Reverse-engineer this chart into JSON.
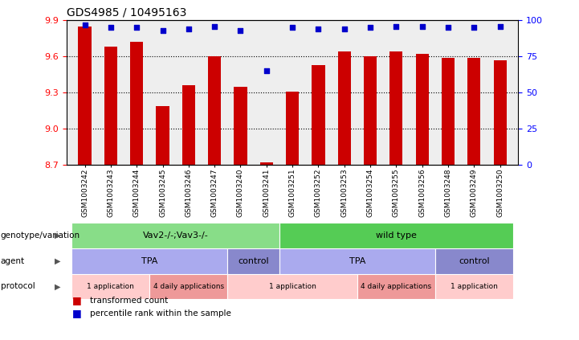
{
  "title": "GDS4985 / 10495163",
  "samples": [
    "GSM1003242",
    "GSM1003243",
    "GSM1003244",
    "GSM1003245",
    "GSM1003246",
    "GSM1003247",
    "GSM1003240",
    "GSM1003241",
    "GSM1003251",
    "GSM1003252",
    "GSM1003253",
    "GSM1003254",
    "GSM1003255",
    "GSM1003256",
    "GSM1003248",
    "GSM1003249",
    "GSM1003250"
  ],
  "red_values": [
    9.85,
    9.68,
    9.72,
    9.19,
    9.36,
    9.6,
    9.35,
    8.72,
    9.31,
    9.53,
    9.64,
    9.6,
    9.64,
    9.62,
    9.59,
    9.59,
    9.57
  ],
  "blue_values": [
    97,
    95,
    95,
    93,
    94,
    96,
    93,
    65,
    95,
    94,
    94,
    95,
    96,
    96,
    95,
    95,
    96
  ],
  "ylim_left": [
    8.7,
    9.9
  ],
  "ylim_right": [
    0,
    100
  ],
  "yticks_left": [
    8.7,
    9.0,
    9.3,
    9.6,
    9.9
  ],
  "yticks_right": [
    0,
    25,
    50,
    75,
    100
  ],
  "bar_color": "#cc0000",
  "dot_color": "#0000cc",
  "bg_color": "#eeeeee",
  "genotype_groups": [
    {
      "label": "Vav2-/-;Vav3-/-",
      "start": 0,
      "end": 8,
      "color": "#88dd88"
    },
    {
      "label": "wild type",
      "start": 8,
      "end": 17,
      "color": "#55cc55"
    }
  ],
  "agent_groups": [
    {
      "label": "TPA",
      "start": 0,
      "end": 6,
      "color": "#aaaaee"
    },
    {
      "label": "control",
      "start": 6,
      "end": 8,
      "color": "#8888cc"
    },
    {
      "label": "TPA",
      "start": 8,
      "end": 14,
      "color": "#aaaaee"
    },
    {
      "label": "control",
      "start": 14,
      "end": 17,
      "color": "#8888cc"
    }
  ],
  "protocol_groups": [
    {
      "label": "1 application",
      "start": 0,
      "end": 3,
      "color": "#ffcccc"
    },
    {
      "label": "4 daily applications",
      "start": 3,
      "end": 6,
      "color": "#ee9999"
    },
    {
      "label": "1 application",
      "start": 6,
      "end": 11,
      "color": "#ffcccc"
    },
    {
      "label": "4 daily applications",
      "start": 11,
      "end": 14,
      "color": "#ee9999"
    },
    {
      "label": "1 application",
      "start": 14,
      "end": 17,
      "color": "#ffcccc"
    }
  ],
  "row_labels": [
    "genotype/variation",
    "agent",
    "protocol"
  ],
  "legend_items": [
    {
      "color": "#cc0000",
      "label": "transformed count"
    },
    {
      "color": "#0000cc",
      "label": "percentile rank within the sample"
    }
  ]
}
